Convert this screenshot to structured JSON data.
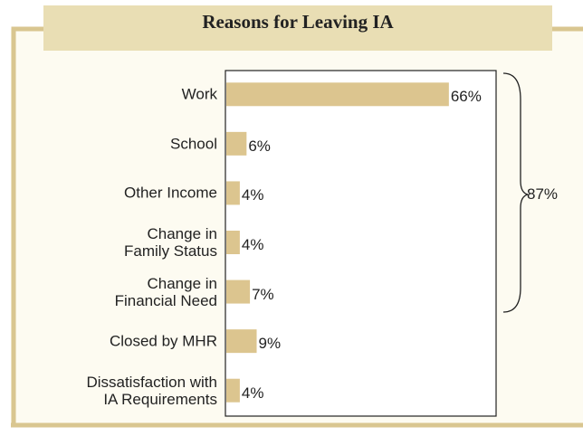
{
  "chart_data": {
    "type": "bar",
    "orientation": "horizontal",
    "title": "Reasons for Leaving IA",
    "categories": [
      "Work",
      "School",
      "Other Income",
      "Change in\nFamily Status",
      "Change in\nFinancial Need",
      "Closed by MHR",
      "Dissatisfaction with\nIA Requirements"
    ],
    "values": [
      66,
      6,
      4,
      4,
      7,
      9,
      4
    ],
    "value_labels": [
      "66%",
      "6%",
      "4%",
      "4%",
      "7%",
      "9%",
      "4%"
    ],
    "color": "#dcc58f",
    "xlim": [
      0,
      80
    ],
    "annotation": "87%"
  }
}
